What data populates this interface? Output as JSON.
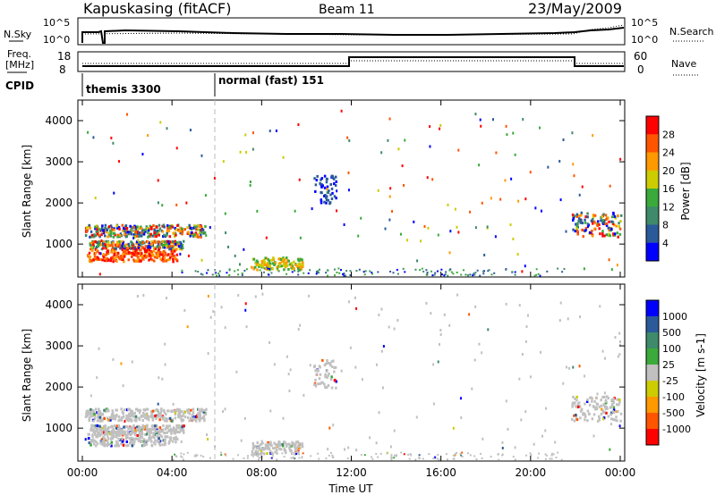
{
  "header": {
    "station": "Kapuskasing (fitACF)",
    "beam": "Beam 11",
    "date": "23/May/2009"
  },
  "noise_panel": {
    "left_label": "N.Sky",
    "right_label": "N.Search",
    "left_ticks": [
      "10^5",
      "10^0"
    ],
    "right_ticks": [
      "10^5",
      "10^0"
    ]
  },
  "freq_panel": {
    "left_label_line1": "Freq.",
    "left_label_line2": "[MHz]",
    "right_label": "Nave",
    "left_ticks": [
      "18",
      "8"
    ],
    "right_ticks": [
      "60",
      "0"
    ]
  },
  "cpid": {
    "label": "CPID",
    "modes": [
      {
        "name": "themis 3300",
        "start_hour": 0
      },
      {
        "name": "normal (fast) 151",
        "start_hour": 6
      }
    ]
  },
  "colors": {
    "power_scale": [
      "#0000ff",
      "#2a5a9a",
      "#3e8a6a",
      "#3aaa3a",
      "#cccc00",
      "#ff9900",
      "#ff5500",
      "#ff0000"
    ],
    "velocity_scale": [
      "#ff0000",
      "#ff5500",
      "#ff9900",
      "#cccc00",
      "#c0c0c0",
      "#3aaa3a",
      "#3e8a6a",
      "#2a5a9a",
      "#0000ff"
    ]
  },
  "chart_data": [
    {
      "type": "heatmap",
      "name": "power",
      "ylabel": "Slant Range [km]",
      "xlabel": "Time UT",
      "xlim": [
        0,
        24
      ],
      "ylim": [
        200,
        4500
      ],
      "yticks": [
        "1000",
        "2000",
        "3000",
        "4000"
      ],
      "xticks": [
        "00:00",
        "04:00",
        "08:00",
        "12:00",
        "16:00",
        "20:00",
        "00:00"
      ],
      "colorbar": {
        "label": "Power [dB]",
        "ticks": [
          "4",
          "8",
          "12",
          "16",
          "20",
          "24",
          "28"
        ]
      },
      "regions": [
        {
          "t": [
            0.1,
            5.5
          ],
          "r": [
            1200,
            1500
          ],
          "level": "mixed"
        },
        {
          "t": [
            0.3,
            4.5
          ],
          "r": [
            900,
            1100
          ],
          "level": "mixed"
        },
        {
          "t": [
            0.2,
            4.2
          ],
          "r": [
            600,
            900
          ],
          "level": "high"
        },
        {
          "t": [
            7.5,
            9.8
          ],
          "r": [
            400,
            700
          ],
          "level": "mid"
        },
        {
          "t": [
            21.8,
            24
          ],
          "r": [
            1200,
            1800
          ],
          "level": "mixed"
        },
        {
          "t": [
            10.3,
            11.3
          ],
          "r": [
            2000,
            2700
          ],
          "level": "low"
        }
      ]
    },
    {
      "type": "heatmap",
      "name": "velocity",
      "ylabel": "Slant Range [km]",
      "xlabel": "Time UT",
      "xlim": [
        0,
        24
      ],
      "ylim": [
        200,
        4500
      ],
      "yticks": [
        "1000",
        "2000",
        "3000",
        "4000"
      ],
      "xticks": [
        "00:00",
        "04:00",
        "08:00",
        "12:00",
        "16:00",
        "20:00",
        "00:00"
      ],
      "colorbar": {
        "label": "Velocity [m s-1]",
        "ticks": [
          "1000",
          "500",
          "100",
          "25",
          "-25",
          "-100",
          "-500",
          "-1000"
        ]
      }
    }
  ]
}
